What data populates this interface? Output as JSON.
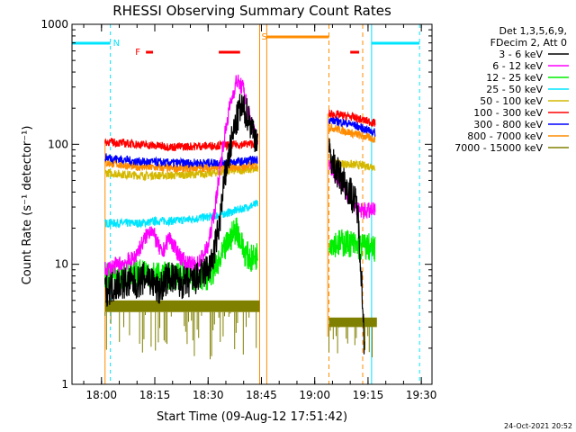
{
  "chart_data": {
    "type": "line",
    "title": "RHESSI Observing Summary Count Rates",
    "xlabel": "Start Time (09-Aug-12 17:51:42)",
    "ylabel": "Count Rate (s⁻¹ detector⁻¹)",
    "ylog": true,
    "ylim": [
      1,
      1000
    ],
    "xlim": [
      "17:51:42",
      "19:33:00"
    ],
    "x_ticks": [
      "18:00",
      "18:15",
      "18:30",
      "18:45",
      "19:00",
      "19:15",
      "19:30"
    ],
    "y_ticks": [
      "1",
      "10",
      "100",
      "1000"
    ],
    "footer": "24-Oct-2021 20:52",
    "legend": {
      "placement": "top-right",
      "header_lines": [
        "Det 1,3,5,6,9,",
        "FDecim 2, Att 0"
      ],
      "entries": [
        {
          "label": "3 - 6 keV",
          "color": "#000000"
        },
        {
          "label": "6 - 12 keV",
          "color": "#ff00ff"
        },
        {
          "label": "12 - 25 keV",
          "color": "#00ee00"
        },
        {
          "label": "25 - 50 keV",
          "color": "#00e5ff"
        },
        {
          "label": "50 - 100 keV",
          "color": "#d4b800"
        },
        {
          "label": "100 - 300 keV",
          "color": "#ff0000"
        },
        {
          "label": "300 - 800 keV",
          "color": "#0000ff"
        },
        {
          "label": "800 - 7000 keV",
          "color": "#ff8c00"
        },
        {
          "label": "7000 - 15000 keV",
          "color": "#808000"
        }
      ]
    },
    "flags": [
      {
        "label": "N",
        "color": "#00e5ff"
      },
      {
        "label": "F",
        "color": "#ff0000"
      },
      {
        "label": "S",
        "color": "#ff8c00"
      }
    ],
    "series": [
      {
        "name": "3 - 6 keV",
        "color": "#000000",
        "points": [
          [
            "18:01",
            6
          ],
          [
            "18:05",
            7
          ],
          [
            "18:10",
            7
          ],
          [
            "18:13",
            8
          ],
          [
            "18:16",
            6
          ],
          [
            "18:19",
            8
          ],
          [
            "18:22",
            7
          ],
          [
            "18:25",
            7
          ],
          [
            "18:28",
            8
          ],
          [
            "18:31",
            10
          ],
          [
            "18:33",
            20
          ],
          [
            "18:35",
            60
          ],
          [
            "18:37",
            120
          ],
          [
            "18:39",
            200
          ],
          [
            "18:41",
            180
          ],
          [
            "18:43",
            120
          ],
          [
            "18:44",
            110
          ],
          [
            "19:04",
            85
          ],
          [
            "19:06",
            60
          ],
          [
            "19:08",
            50
          ],
          [
            "19:10",
            40
          ],
          [
            "19:12",
            30
          ],
          [
            "19:13",
            10
          ],
          [
            "19:14",
            2
          ]
        ]
      },
      {
        "name": "6 - 12 keV",
        "color": "#ff00ff",
        "points": [
          [
            "18:01",
            9
          ],
          [
            "18:05",
            10
          ],
          [
            "18:09",
            11
          ],
          [
            "18:12",
            16
          ],
          [
            "18:14",
            20
          ],
          [
            "18:17",
            12
          ],
          [
            "18:19",
            17
          ],
          [
            "18:21",
            13
          ],
          [
            "18:24",
            10
          ],
          [
            "18:27",
            10
          ],
          [
            "18:30",
            14
          ],
          [
            "18:32",
            30
          ],
          [
            "18:34",
            90
          ],
          [
            "18:36",
            200
          ],
          [
            "18:38",
            340
          ],
          [
            "18:40",
            290
          ],
          [
            "18:42",
            150
          ],
          [
            "18:44",
            105
          ],
          [
            "19:04",
            70
          ],
          [
            "19:06",
            55
          ],
          [
            "19:08",
            45
          ],
          [
            "19:10",
            35
          ],
          [
            "19:12",
            28
          ],
          [
            "19:15",
            28
          ],
          [
            "19:17",
            28
          ]
        ]
      },
      {
        "name": "12 - 25 keV",
        "color": "#00ee00",
        "points": [
          [
            "18:01",
            8
          ],
          [
            "18:05",
            8
          ],
          [
            "18:09",
            8
          ],
          [
            "18:12",
            9
          ],
          [
            "18:15",
            8
          ],
          [
            "18:18",
            8
          ],
          [
            "18:21",
            8
          ],
          [
            "18:24",
            8
          ],
          [
            "18:27",
            8
          ],
          [
            "18:30",
            8
          ],
          [
            "18:33",
            10
          ],
          [
            "18:35",
            14
          ],
          [
            "18:37",
            18
          ],
          [
            "18:38",
            20
          ],
          [
            "18:40",
            13
          ],
          [
            "18:42",
            11
          ],
          [
            "18:44",
            12
          ],
          [
            "19:04",
            16
          ],
          [
            "19:06",
            15
          ],
          [
            "19:08",
            15
          ],
          [
            "19:10",
            15
          ],
          [
            "19:12",
            14
          ],
          [
            "19:15",
            14
          ],
          [
            "19:17",
            13
          ]
        ]
      },
      {
        "name": "25 - 50 keV",
        "color": "#00e5ff",
        "points": [
          [
            "18:01",
            22
          ],
          [
            "18:06",
            22
          ],
          [
            "18:11",
            22
          ],
          [
            "18:16",
            23
          ],
          [
            "18:21",
            23
          ],
          [
            "18:26",
            24
          ],
          [
            "18:31",
            25
          ],
          [
            "18:36",
            27
          ],
          [
            "18:41",
            30
          ],
          [
            "18:44",
            32
          ]
        ]
      },
      {
        "name": "50 - 100 keV",
        "color": "#d4b800",
        "points": [
          [
            "18:01",
            58
          ],
          [
            "18:10",
            55
          ],
          [
            "18:20",
            55
          ],
          [
            "18:30",
            57
          ],
          [
            "18:36",
            60
          ],
          [
            "18:44",
            62
          ],
          [
            "19:04",
            70
          ],
          [
            "19:10",
            68
          ],
          [
            "19:17",
            65
          ]
        ]
      },
      {
        "name": "100 - 300 keV",
        "color": "#ff0000",
        "points": [
          [
            "18:01",
            105
          ],
          [
            "18:10",
            100
          ],
          [
            "18:20",
            95
          ],
          [
            "18:30",
            97
          ],
          [
            "18:40",
            100
          ],
          [
            "18:44",
            102
          ],
          [
            "19:04",
            180
          ],
          [
            "19:10",
            170
          ],
          [
            "19:17",
            150
          ]
        ]
      },
      {
        "name": "300 - 800 keV",
        "color": "#0000ff",
        "points": [
          [
            "18:01",
            78
          ],
          [
            "18:10",
            72
          ],
          [
            "18:20",
            70
          ],
          [
            "18:30",
            70
          ],
          [
            "18:40",
            72
          ],
          [
            "18:44",
            75
          ],
          [
            "19:04",
            160
          ],
          [
            "19:10",
            148
          ],
          [
            "19:17",
            125
          ]
        ]
      },
      {
        "name": "800 - 7000 keV",
        "color": "#ff8c00",
        "points": [
          [
            "18:01",
            70
          ],
          [
            "18:10",
            65
          ],
          [
            "18:20",
            63
          ],
          [
            "18:30",
            64
          ],
          [
            "18:40",
            65
          ],
          [
            "18:44",
            67
          ],
          [
            "19:04",
            140
          ],
          [
            "19:10",
            125
          ],
          [
            "19:17",
            110
          ]
        ]
      },
      {
        "name": "7000 - 15000 keV",
        "color": "#808000",
        "points": [
          [
            "18:01",
            4.3
          ],
          [
            "18:10",
            4.2
          ],
          [
            "18:20",
            4.2
          ],
          [
            "18:30",
            4.3
          ],
          [
            "18:40",
            4.4
          ],
          [
            "18:44",
            4.5
          ],
          [
            "19:04",
            3.3
          ],
          [
            "19:10",
            3.3
          ],
          [
            "19:17",
            3.3
          ]
        ]
      }
    ]
  }
}
